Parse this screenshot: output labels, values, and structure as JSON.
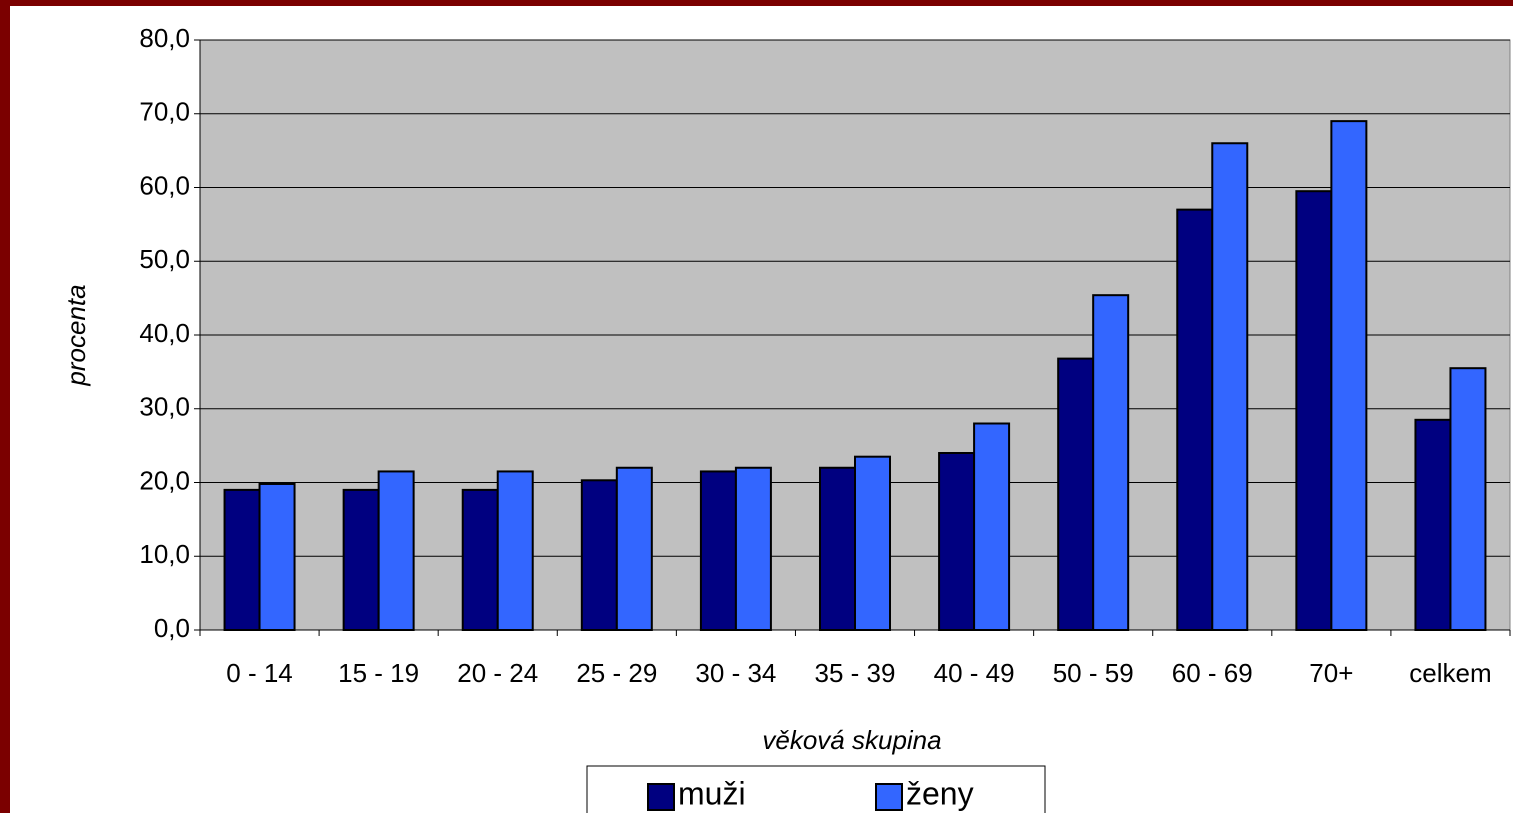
{
  "chart_data": {
    "type": "bar",
    "x_label": "věková skupina",
    "y_label": "procenta",
    "categories": [
      "0 - 14",
      "15 - 19",
      "20 - 24",
      "25 - 29",
      "30 - 34",
      "35 - 39",
      "40 - 49",
      "50 - 59",
      "60 - 69",
      "70+",
      "celkem"
    ],
    "series": [
      {
        "name": "muži",
        "color": "#000080",
        "values": [
          19.0,
          19.0,
          19.0,
          20.3,
          21.5,
          22.0,
          24.0,
          36.8,
          57.0,
          59.5,
          28.5
        ]
      },
      {
        "name": "ženy",
        "color": "#3366ff",
        "values": [
          19.8,
          21.5,
          21.5,
          22.0,
          22.0,
          23.5,
          28.0,
          45.4,
          66.0,
          69.0,
          35.5
        ]
      }
    ],
    "ylim": [
      0,
      80
    ],
    "yticks": [
      {
        "value": 0,
        "label": "0,0"
      },
      {
        "value": 10,
        "label": "10,0"
      },
      {
        "value": 20,
        "label": "20,0"
      },
      {
        "value": 30,
        "label": "30,0"
      },
      {
        "value": 40,
        "label": "40,0"
      },
      {
        "value": 50,
        "label": "50,0"
      },
      {
        "value": 60,
        "label": "60,0"
      },
      {
        "value": 70,
        "label": "70,0"
      },
      {
        "value": 80,
        "label": "80,0"
      }
    ],
    "grid": true,
    "legend": "bottom"
  }
}
